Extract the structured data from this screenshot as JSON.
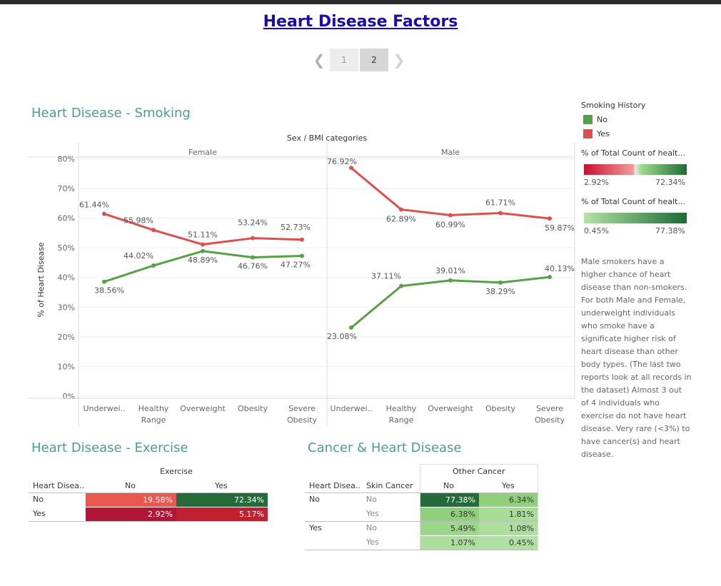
{
  "page": {
    "title": "Heart Disease Factors"
  },
  "pager": {
    "pages": [
      "1",
      "2"
    ],
    "current": "2",
    "prev_icon": "chevron-left-icon",
    "next_icon": "chevron-right-icon"
  },
  "smoking": {
    "title": "Heart Disease - Smoking",
    "top_header": "Sex / BMI categories",
    "ylabel": "% of Heart Disease",
    "panels": [
      "Female",
      "Male"
    ],
    "yticks": [
      "80%",
      "70%",
      "60%",
      "50%",
      "40%",
      "30%",
      "20%",
      "10%",
      "0%"
    ]
  },
  "chart_data": [
    {
      "type": "line",
      "title": "Heart Disease - Smoking",
      "xlabel": "Sex / BMI categories",
      "ylabel": "% of Heart Disease",
      "ylim": [
        0,
        80
      ],
      "panels": [
        "Female",
        "Male"
      ],
      "categories": [
        "Underwei..",
        "Healthy Range",
        "Overweight",
        "Obesity",
        "Severe Obesity"
      ],
      "series": [
        {
          "name": "No",
          "color": "#57a045",
          "Female": [
            38.56,
            44.02,
            48.89,
            46.76,
            47.27
          ],
          "Male": [
            23.08,
            37.11,
            39.01,
            38.29,
            40.13
          ]
        },
        {
          "name": "Yes",
          "color": "#dc4f4f",
          "Female": [
            61.44,
            55.98,
            51.11,
            53.24,
            52.73
          ],
          "Male": [
            76.92,
            62.89,
            60.99,
            61.71,
            59.87
          ]
        }
      ],
      "labels": {
        "No": {
          "Female": [
            "38.56%",
            "44.02%",
            "48.89%",
            "46.76%",
            "47.27%"
          ],
          "Male": [
            "23.08%",
            "37.11%",
            "39.01%",
            "38.29%",
            "40.13%"
          ]
        },
        "Yes": {
          "Female": [
            "61.44%",
            "55.98%",
            "51.11%",
            "53.24%",
            "52.73%"
          ],
          "Male": [
            "76.92%",
            "62.89%",
            "60.99%",
            "61.71%",
            "59.87%"
          ]
        }
      },
      "grid": true
    },
    {
      "type": "table",
      "title": "Heart Disease - Exercise",
      "column_group": "Exercise",
      "row_header": "Heart Disea..",
      "columns": [
        "No",
        "Yes"
      ],
      "rows": [
        {
          "label": "No",
          "values": [
            "19.58%",
            "72.34%"
          ],
          "colors": [
            "#e9574f",
            "#236b38"
          ]
        },
        {
          "label": "Yes",
          "values": [
            "2.92%",
            "5.17%"
          ],
          "colors": [
            "#b31535",
            "#c0202f"
          ]
        }
      ]
    },
    {
      "type": "table",
      "title": "Cancer & Heart Disease",
      "column_group": "Other Cancer",
      "row_headers": [
        "Heart Disea..",
        "Skin Cancer"
      ],
      "columns": [
        "No",
        "Yes"
      ],
      "rows": [
        {
          "hd": "No",
          "skin": "No",
          "values": [
            "77.38%",
            "6.34%"
          ],
          "colors": [
            "#236b38",
            "#8fd07c"
          ]
        },
        {
          "hd": "",
          "skin": "Yes",
          "values": [
            "6.38%",
            "1.81%"
          ],
          "colors": [
            "#8fd07c",
            "#a8dd98"
          ]
        },
        {
          "hd": "Yes",
          "skin": "No",
          "values": [
            "5.49%",
            "1.08%"
          ],
          "colors": [
            "#9bd68a",
            "#acdf9d"
          ]
        },
        {
          "hd": "",
          "skin": "Yes",
          "values": [
            "1.07%",
            "0.45%"
          ],
          "colors": [
            "#acdf9d",
            "#b0e1a2"
          ]
        }
      ]
    }
  ],
  "legend": {
    "title": "Smoking History",
    "items": [
      {
        "label": "No",
        "color": "#57a045"
      },
      {
        "label": "Yes",
        "color": "#dc4f4f"
      }
    ],
    "gradient1": {
      "title": "% of Total Count of healt...",
      "min": "2.92%",
      "max": "72.34%"
    },
    "gradient2": {
      "title": "% of Total Count of healt...",
      "min": "0.45%",
      "max": "77.38%"
    }
  },
  "annotation": "Male smokers have a higher chance of heart disease than non-smokers. For both Male and Female, underweight individuals who smoke have a significate higher risk of heart disease than other body types. (The last two reports look at all records in the dataset) Almost 3 out of 4 individuals who exercise do not have heart disease. Very rare (<3%) to have cancer(s) and heart disease.",
  "exercise": {
    "title": "Heart Disease - Exercise",
    "group": "Exercise",
    "row_header": "Heart Disea..",
    "col_no": "No",
    "col_yes": "Yes",
    "row_no": "No",
    "row_yes": "Yes"
  },
  "cancer": {
    "title": "Cancer & Heart Disease",
    "group": "Other Cancer",
    "hd_header": "Heart Disea..",
    "skin_header": "Skin Cancer",
    "col_no": "No",
    "col_yes": "Yes"
  }
}
